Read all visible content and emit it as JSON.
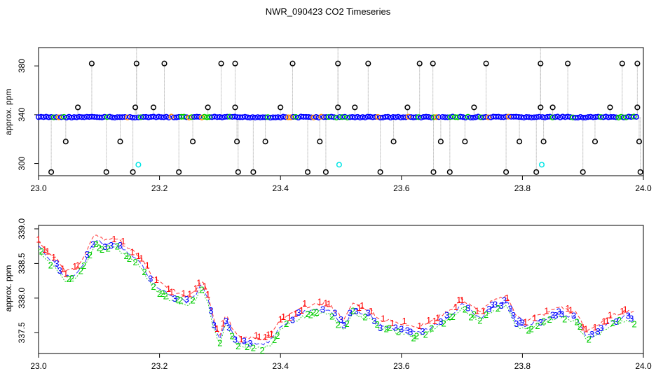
{
  "title": "NWR_090423  CO2 Timeseries",
  "colors": {
    "flag1": "#ff0000",
    "flag2": "#00cc00",
    "flag3": "#0000ff",
    "cyan": "#00e5e5",
    "grey": "#a0a0a0",
    "outlier": "#000000",
    "base": "#0000ff"
  },
  "chart_data": [
    {
      "type": "scatter",
      "ylabel": "approx. ppm",
      "xlim": [
        23.0,
        24.0
      ],
      "ylim": [
        290,
        395
      ],
      "xticks": [
        "23.0",
        "23.2",
        "23.4",
        "23.6",
        "23.8",
        "24.0"
      ],
      "yticks": [
        "300",
        "340",
        "380"
      ],
      "baseline": 338,
      "base_segments": [
        [
          23.0,
          23.162
        ],
        [
          23.165,
          23.33
        ],
        [
          23.333,
          23.495
        ],
        [
          23.498,
          23.665
        ],
        [
          23.668,
          23.83
        ],
        [
          23.833,
          23.99
        ]
      ],
      "outliers_high": [
        23.088,
        23.162,
        23.208,
        23.302,
        23.325,
        23.42,
        23.495,
        23.545,
        23.63,
        23.652,
        23.74,
        23.83,
        23.875,
        23.965,
        23.99
      ],
      "outliers_mid": [
        23.065,
        23.16,
        23.19,
        23.28,
        23.325,
        23.4,
        23.495,
        23.523,
        23.61,
        23.72,
        23.83,
        23.85,
        23.945,
        23.99
      ],
      "outliers_low": [
        23.045,
        23.135,
        23.255,
        23.328,
        23.375,
        23.465,
        23.587,
        23.665,
        23.705,
        23.795,
        23.835,
        23.92,
        23.993
      ],
      "outliers_bottom": [
        23.021,
        23.112,
        23.156,
        23.232,
        23.33,
        23.355,
        23.445,
        23.475,
        23.565,
        23.653,
        23.68,
        23.773,
        23.823,
        23.9,
        23.995
      ],
      "cyan_points": [
        {
          "x": 23.165,
          "y": 299
        },
        {
          "x": 23.497,
          "y": 299
        },
        {
          "x": 23.832,
          "y": 299
        }
      ]
    },
    {
      "type": "line",
      "ylabel": "approx. ppm",
      "xlim": [
        23.0,
        24.0
      ],
      "ylim": [
        337.2,
        339.05
      ],
      "xticks": [
        "23.0",
        "23.2",
        "23.4",
        "23.6",
        "23.8",
        "24.0"
      ],
      "yticks": [
        "337.5",
        "338.0",
        "338.5",
        "339.0"
      ],
      "keypoints": [
        [
          23.0,
          338.75
        ],
        [
          23.01,
          338.65
        ],
        [
          23.02,
          338.55
        ],
        [
          23.03,
          338.5
        ],
        [
          23.035,
          338.4
        ],
        [
          23.045,
          338.3
        ],
        [
          23.06,
          338.35
        ],
        [
          23.075,
          338.5
        ],
        [
          23.085,
          338.7
        ],
        [
          23.095,
          338.85
        ],
        [
          23.11,
          338.75
        ],
        [
          23.125,
          338.8
        ],
        [
          23.14,
          338.7
        ],
        [
          23.155,
          338.6
        ],
        [
          23.17,
          338.5
        ],
        [
          23.18,
          338.35
        ],
        [
          23.19,
          338.2
        ],
        [
          23.2,
          338.15
        ],
        [
          23.215,
          338.05
        ],
        [
          23.23,
          338.0
        ],
        [
          23.245,
          337.95
        ],
        [
          23.26,
          338.05
        ],
        [
          23.27,
          338.2
        ],
        [
          23.28,
          338.0
        ],
        [
          23.29,
          337.6
        ],
        [
          23.3,
          337.4
        ],
        [
          23.31,
          337.7
        ],
        [
          23.32,
          337.5
        ],
        [
          23.33,
          337.35
        ],
        [
          23.35,
          337.35
        ],
        [
          23.37,
          337.33
        ],
        [
          23.385,
          337.4
        ],
        [
          23.4,
          337.6
        ],
        [
          23.42,
          337.7
        ],
        [
          23.44,
          337.8
        ],
        [
          23.46,
          337.82
        ],
        [
          23.475,
          337.85
        ],
        [
          23.49,
          337.75
        ],
        [
          23.505,
          337.6
        ],
        [
          23.52,
          337.85
        ],
        [
          23.535,
          337.78
        ],
        [
          23.55,
          337.75
        ],
        [
          23.565,
          337.6
        ],
        [
          23.58,
          337.6
        ],
        [
          23.595,
          337.55
        ],
        [
          23.61,
          337.55
        ],
        [
          23.625,
          337.5
        ],
        [
          23.64,
          337.55
        ],
        [
          23.655,
          337.6
        ],
        [
          23.67,
          337.7
        ],
        [
          23.685,
          337.78
        ],
        [
          23.7,
          337.9
        ],
        [
          23.715,
          337.82
        ],
        [
          23.73,
          337.7
        ],
        [
          23.745,
          337.85
        ],
        [
          23.76,
          337.9
        ],
        [
          23.775,
          337.95
        ],
        [
          23.79,
          337.65
        ],
        [
          23.805,
          337.6
        ],
        [
          23.82,
          337.65
        ],
        [
          23.84,
          337.7
        ],
        [
          23.86,
          337.8
        ],
        [
          23.875,
          337.75
        ],
        [
          23.89,
          337.7
        ],
        [
          23.905,
          337.45
        ],
        [
          23.915,
          337.5
        ],
        [
          23.93,
          337.55
        ],
        [
          23.945,
          337.65
        ],
        [
          23.96,
          337.7
        ],
        [
          23.975,
          337.75
        ],
        [
          23.985,
          337.7
        ]
      ],
      "labels": [
        "1",
        "2",
        "3"
      ]
    }
  ]
}
